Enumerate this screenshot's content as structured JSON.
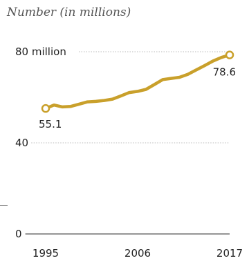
{
  "chart_data": {
    "type": "line",
    "subtitle": "Number (in millions)",
    "x": [
      1995,
      1996,
      1997,
      1998,
      1999,
      2000,
      2001,
      2002,
      2003,
      2004,
      2005,
      2006,
      2007,
      2008,
      2009,
      2010,
      2011,
      2012,
      2013,
      2014,
      2015,
      2016,
      2017
    ],
    "series": [
      {
        "values": [
          55.1,
          56.6,
          55.8,
          56.0,
          57.0,
          58.0,
          58.2,
          58.6,
          59.2,
          60.6,
          62.1,
          62.6,
          63.5,
          65.6,
          67.8,
          68.3,
          68.8,
          70.1,
          72.0,
          73.9,
          75.9,
          77.5,
          78.6
        ],
        "color": "#c9a02b"
      }
    ],
    "yticks": [
      0,
      40,
      80
    ],
    "ytick_labels": [
      "0",
      "40",
      "80 million"
    ],
    "xticks": [
      1995,
      2006,
      2017
    ],
    "xtick_labels": [
      "1995",
      "2006",
      "2017"
    ],
    "ylim": [
      0,
      80
    ],
    "xlim": [
      1995,
      2017
    ],
    "grid": "dotted horizontal at y ticks",
    "endpoint_labels": [
      "55.1",
      "78.6"
    ]
  }
}
